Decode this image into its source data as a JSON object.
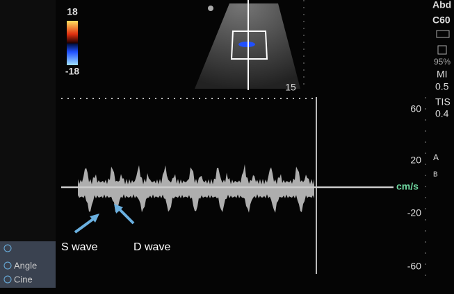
{
  "color_bar": {
    "top": "18",
    "bottom": "-18"
  },
  "sector": {
    "depth": "15"
  },
  "side_panel": {
    "preset": "Abd",
    "probe": "C60",
    "power": "95%",
    "mi_label": "MI",
    "mi_value": "0.5",
    "tis_label": "TIS",
    "tis_value": "0.4",
    "a": "A",
    "b": "B"
  },
  "scale": {
    "labels": [
      "60",
      "20",
      "-20",
      "-60"
    ],
    "unit": "cm/s"
  },
  "annotations": {
    "s_wave": "S wave",
    "d_wave": "D wave"
  },
  "menu": {
    "items": [
      "Angle",
      "Cine"
    ]
  }
}
